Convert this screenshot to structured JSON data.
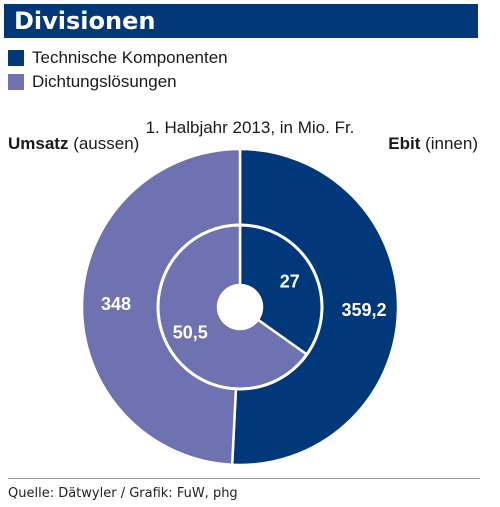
{
  "title": "Divisionen",
  "legend": [
    {
      "name": "Technische Komponenten",
      "color": "#00387a"
    },
    {
      "name": "Dichtungslösungen",
      "color": "#6f72b0"
    }
  ],
  "outer_label": {
    "bold": "Umsatz",
    "rest": " (aussen)"
  },
  "inner_label": {
    "bold": "Ebit",
    "rest": " (innen)"
  },
  "source": "Quelle: Dätwyler / Grafik: FuW, phg",
  "chart_data": {
    "type": "pie",
    "subtitle": "1. Halbjahr 2013, in Mio. Fr.",
    "rings": [
      {
        "name": "Umsatz",
        "position": "outer",
        "slices": [
          {
            "label": "Technische Komponenten",
            "value": 359.2,
            "display": "359,2"
          },
          {
            "label": "Dichtungslösungen",
            "value": 348,
            "display": "348"
          }
        ]
      },
      {
        "name": "Ebit",
        "position": "inner",
        "slices": [
          {
            "label": "Technische Komponenten",
            "value": 27,
            "display": "27"
          },
          {
            "label": "Dichtungslösungen",
            "value": 50.5,
            "display": "50,5"
          }
        ]
      }
    ],
    "colors": [
      "#00387a",
      "#6f72b0"
    ]
  }
}
